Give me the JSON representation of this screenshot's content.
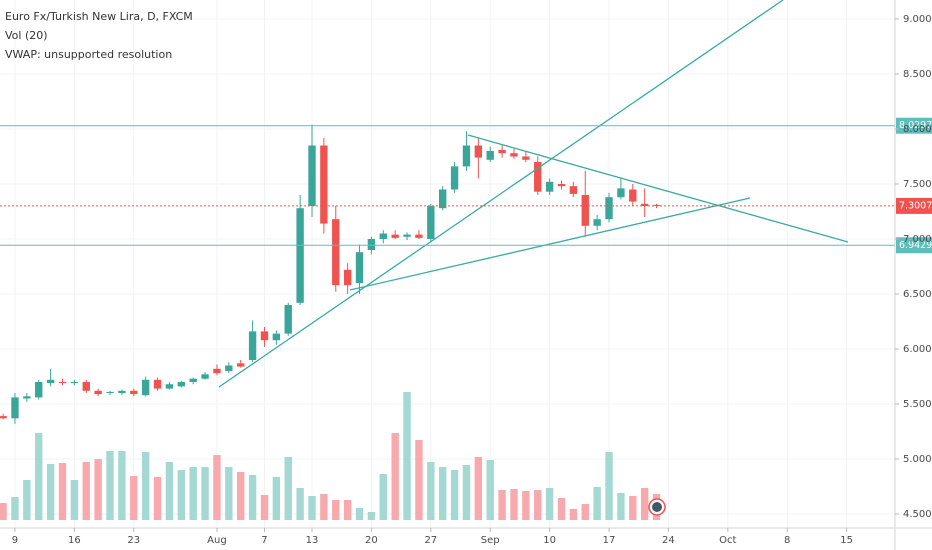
{
  "chart_data": {
    "type": "candlestick",
    "title": "Euro Fx/Turkish New Lira, D, FXCM",
    "indicators": [
      "Vol (20)",
      "VWAP: unsupported resolution"
    ],
    "x": [
      0,
      1,
      2,
      3,
      4,
      5,
      6,
      7,
      8,
      9,
      10,
      11,
      12,
      13,
      14,
      15,
      16,
      17,
      18,
      19,
      20,
      21,
      22,
      23,
      24,
      25,
      26,
      27,
      28,
      29,
      30,
      31,
      32,
      33,
      34,
      35,
      36,
      37,
      38,
      39,
      40,
      41,
      42,
      43,
      44,
      45,
      46,
      47,
      48,
      49,
      50,
      51,
      52,
      53,
      54,
      55
    ],
    "open": [
      5.39,
      5.37,
      5.55,
      5.56,
      5.69,
      5.7,
      5.69,
      5.7,
      5.62,
      5.6,
      5.6,
      5.62,
      5.58,
      5.72,
      5.64,
      5.66,
      5.7,
      5.73,
      5.82,
      5.8,
      5.87,
      5.9,
      6.16,
      6.08,
      6.14,
      6.42,
      7.3,
      7.85,
      7.18,
      6.72,
      6.6,
      6.9,
      7.0,
      7.04,
      7.02,
      7.04,
      7.0,
      7.28,
      7.45,
      7.66,
      7.85,
      7.72,
      7.81,
      7.78,
      7.75,
      7.7,
      7.43,
      7.5,
      7.48,
      7.4,
      7.12,
      7.18,
      7.38,
      7.45,
      7.32,
      7.31
    ],
    "high": [
      5.41,
      5.6,
      5.6,
      5.72,
      5.82,
      5.73,
      5.72,
      5.72,
      5.64,
      5.62,
      5.63,
      5.64,
      5.75,
      5.74,
      5.7,
      5.71,
      5.74,
      5.79,
      5.86,
      5.88,
      5.9,
      6.26,
      6.2,
      6.17,
      6.42,
      7.4,
      8.04,
      7.92,
      7.3,
      6.78,
      6.95,
      7.02,
      7.08,
      7.08,
      7.06,
      7.08,
      7.32,
      7.48,
      7.7,
      7.98,
      7.92,
      7.84,
      7.86,
      7.82,
      7.8,
      7.75,
      7.55,
      7.53,
      7.52,
      7.62,
      7.22,
      7.42,
      7.55,
      7.5,
      7.46,
      7.32
    ],
    "low": [
      5.36,
      5.32,
      5.52,
      5.54,
      5.66,
      5.67,
      5.67,
      5.6,
      5.57,
      5.58,
      5.58,
      5.57,
      5.57,
      5.62,
      5.63,
      5.65,
      5.68,
      5.72,
      5.76,
      5.78,
      5.83,
      5.88,
      6.02,
      6.04,
      6.12,
      6.4,
      7.2,
      7.05,
      6.52,
      6.5,
      6.5,
      6.86,
      6.96,
      7.0,
      6.99,
      7.0,
      6.97,
      7.26,
      7.42,
      7.62,
      7.55,
      7.7,
      7.74,
      7.73,
      7.7,
      7.4,
      7.4,
      7.45,
      7.38,
      7.02,
      7.08,
      7.15,
      7.36,
      7.3,
      7.2,
      7.28
    ],
    "close": [
      5.37,
      5.56,
      5.57,
      5.7,
      5.72,
      5.69,
      5.7,
      5.62,
      5.59,
      5.61,
      5.62,
      5.59,
      5.72,
      5.64,
      5.68,
      5.7,
      5.73,
      5.77,
      5.78,
      5.85,
      5.84,
      6.16,
      6.08,
      6.14,
      6.4,
      7.28,
      7.85,
      7.14,
      6.58,
      6.58,
      6.88,
      7.0,
      7.05,
      7.01,
      7.04,
      7.01,
      7.3,
      7.45,
      7.66,
      7.85,
      7.74,
      7.8,
      7.78,
      7.75,
      7.72,
      7.43,
      7.52,
      7.48,
      7.41,
      7.12,
      7.18,
      7.38,
      7.46,
      7.34,
      7.3,
      7.30075
    ],
    "volume": [
      17,
      23,
      40,
      87,
      56,
      57,
      40,
      58,
      61,
      69,
      69,
      44,
      68,
      43,
      58,
      50,
      53,
      53,
      65,
      53,
      48,
      45,
      25,
      43,
      63,
      32,
      24,
      26,
      20,
      20,
      12,
      8,
      46,
      87,
      128,
      80,
      58,
      53,
      50,
      55,
      63,
      60,
      30,
      31,
      29,
      30,
      32,
      22,
      11,
      16,
      33,
      68,
      27,
      24,
      32,
      26
    ],
    "up_color": "#3aa69a",
    "down_color": "#ef5350",
    "volume_up_color": "#a3d8d3",
    "volume_down_color": "#f7a9ad",
    "xlim": [
      -0.26,
      75.07
    ],
    "ylim": [
      4.3727,
      9.1727
    ],
    "volume_lim": [
      0,
      140
    ],
    "grid": true,
    "yticks": [
      {
        "value": 4.5,
        "label": "4.50000"
      },
      {
        "value": 5,
        "label": "5.00000"
      },
      {
        "value": 5.5,
        "label": "5.50000"
      },
      {
        "value": 6,
        "label": "6.00000"
      },
      {
        "value": 6.5,
        "label": "6.50000"
      },
      {
        "value": 7,
        "label": "7.00000"
      },
      {
        "value": 7.5,
        "label": "7.50000"
      },
      {
        "value": 8,
        "label": "8.00000"
      },
      {
        "value": 8.5,
        "label": "8.50000"
      },
      {
        "value": 9,
        "label": "9.00000"
      }
    ],
    "xticks": [
      {
        "value": 1,
        "label": "9"
      },
      {
        "value": 6,
        "label": "16"
      },
      {
        "value": 11,
        "label": "23"
      },
      {
        "value": 18,
        "label": "Aug"
      },
      {
        "value": 22,
        "label": "7"
      },
      {
        "value": 26,
        "label": "13"
      },
      {
        "value": 31,
        "label": "20"
      },
      {
        "value": 36,
        "label": "27"
      },
      {
        "value": 41,
        "label": "Sep"
      },
      {
        "value": 46,
        "label": "10"
      },
      {
        "value": 51,
        "label": "17"
      },
      {
        "value": 56,
        "label": "24"
      },
      {
        "value": 61,
        "label": "Oct"
      },
      {
        "value": 66,
        "label": "8"
      },
      {
        "value": 71,
        "label": "15"
      }
    ],
    "levels": [
      {
        "value": 8.02978,
        "color": "#5fbdbd",
        "style": "solid"
      },
      {
        "value": 7.30075,
        "color": "#ef5350",
        "style": "dotted"
      },
      {
        "value": 6.94294,
        "color": "#5fbdbd",
        "style": "solid"
      }
    ]
  }
}
